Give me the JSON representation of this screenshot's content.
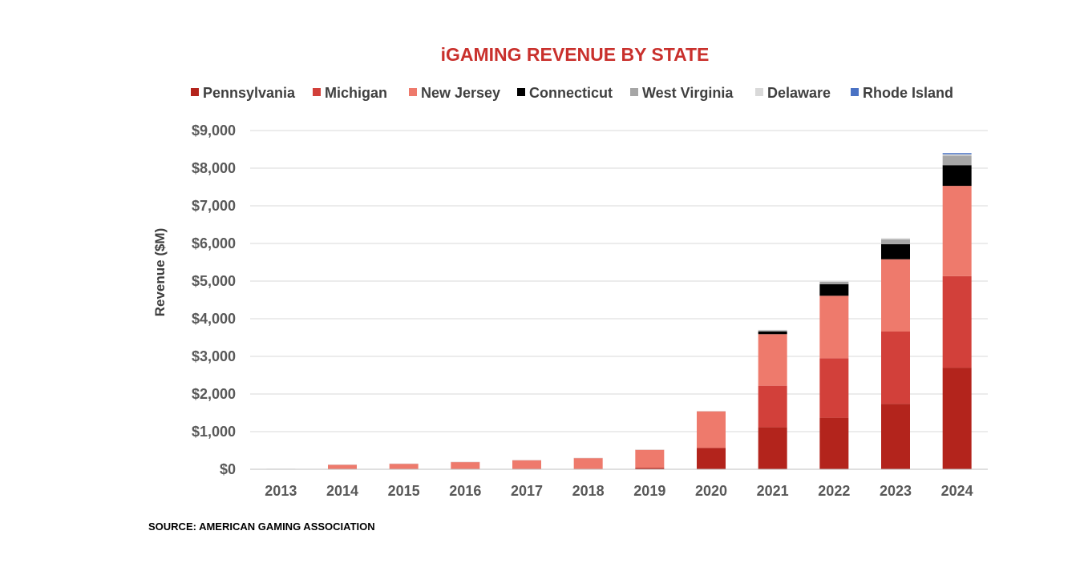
{
  "colors": {
    "title": "#c9302c",
    "gridline": "#d9d9d9",
    "baseline": "#bfbfbf",
    "Pennsylvania": "#b3241c",
    "Michigan": "#d2403a",
    "New Jersey": "#ee7a6c",
    "Connecticut": "#000000",
    "West Virginia": "#a6a6a6",
    "Delaware": "#d9d9d9",
    "Rhode Island": "#4a72c4"
  },
  "source": "SOURCE: AMERICAN GAMING ASSOCIATION",
  "chart_data": {
    "type": "bar",
    "stacked": true,
    "title": "iGAMING REVENUE BY STATE",
    "xlabel": "",
    "ylabel": "Revenue ($M)",
    "ylim": [
      0,
      9000
    ],
    "yticks": [
      0,
      1000,
      2000,
      3000,
      4000,
      5000,
      6000,
      7000,
      8000,
      9000
    ],
    "ytick_labels": [
      "$0",
      "$1,000",
      "$2,000",
      "$3,000",
      "$4,000",
      "$5,000",
      "$6,000",
      "$7,000",
      "$8,000",
      "$9,000"
    ],
    "grid": true,
    "legend_position": "top",
    "categories": [
      "2013",
      "2014",
      "2015",
      "2016",
      "2017",
      "2018",
      "2019",
      "2020",
      "2021",
      "2022",
      "2023",
      "2024"
    ],
    "series": [
      {
        "name": "Pennsylvania",
        "values": [
          0,
          0,
          0,
          0,
          0,
          0,
          40,
          570,
          1120,
          1370,
          1740,
          2700
        ]
      },
      {
        "name": "Michigan",
        "values": [
          0,
          0,
          0,
          0,
          0,
          0,
          0,
          0,
          1100,
          1580,
          1920,
          2430
        ]
      },
      {
        "name": "New Jersey",
        "values": [
          10,
          125,
          150,
          195,
          245,
          300,
          480,
          970,
          1370,
          1660,
          1920,
          2400
        ]
      },
      {
        "name": "Connecticut",
        "values": [
          0,
          0,
          0,
          0,
          0,
          0,
          0,
          0,
          70,
          310,
          400,
          550
        ]
      },
      {
        "name": "West Virginia",
        "values": [
          0,
          0,
          0,
          0,
          0,
          0,
          0,
          0,
          30,
          60,
          130,
          250
        ]
      },
      {
        "name": "Delaware",
        "values": [
          5,
          3,
          3,
          3,
          3,
          3,
          5,
          10,
          15,
          20,
          30,
          40
        ]
      },
      {
        "name": "Rhode Island",
        "values": [
          0,
          0,
          0,
          0,
          0,
          0,
          0,
          0,
          0,
          0,
          0,
          30
        ]
      }
    ]
  }
}
